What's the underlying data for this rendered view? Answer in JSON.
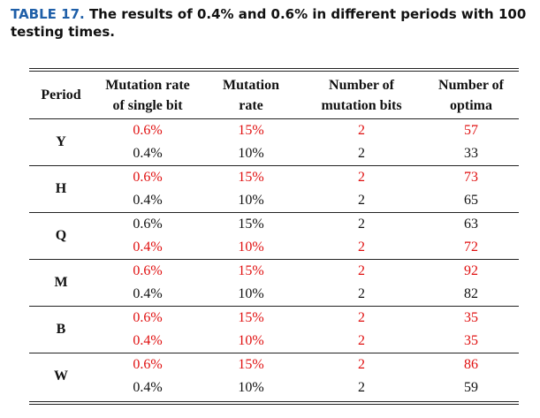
{
  "caption": {
    "label": "TABLE 17.",
    "text": "The results of 0.4% and 0.6% in different periods with 100 testing times."
  },
  "header": {
    "period": "Period",
    "col1_line1": "Mutation rate",
    "col1_line2": "of single bit",
    "col2_line1": "Mutation",
    "col2_line2": "rate",
    "col3_line1": "Number of",
    "col3_line2": "mutation bits",
    "col4_line1": "Number of",
    "col4_line2": "optima"
  },
  "colors": {
    "highlight": "#e01010",
    "caption_label": "#1f5fa8"
  },
  "groups": [
    {
      "period": "Y",
      "rows": [
        {
          "single": "0.6%",
          "rate": "15%",
          "bits": "2",
          "optima": "57",
          "red": [
            true,
            true,
            true,
            true
          ]
        },
        {
          "single": "0.4%",
          "rate": "10%",
          "bits": "2",
          "optima": "33",
          "red": [
            false,
            false,
            false,
            false
          ]
        }
      ]
    },
    {
      "period": "H",
      "rows": [
        {
          "single": "0.6%",
          "rate": "15%",
          "bits": "2",
          "optima": "73",
          "red": [
            true,
            true,
            true,
            true
          ]
        },
        {
          "single": "0.4%",
          "rate": "10%",
          "bits": "2",
          "optima": "65",
          "red": [
            false,
            false,
            false,
            false
          ]
        }
      ]
    },
    {
      "period": "Q",
      "rows": [
        {
          "single": "0.6%",
          "rate": "15%",
          "bits": "2",
          "optima": "63",
          "red": [
            false,
            false,
            false,
            false
          ]
        },
        {
          "single": "0.4%",
          "rate": "10%",
          "bits": "2",
          "optima": "72",
          "red": [
            true,
            true,
            true,
            true
          ]
        }
      ]
    },
    {
      "period": "M",
      "rows": [
        {
          "single": "0.6%",
          "rate": "15%",
          "bits": "2",
          "optima": "92",
          "red": [
            true,
            true,
            true,
            true
          ]
        },
        {
          "single": "0.4%",
          "rate": "10%",
          "bits": "2",
          "optima": "82",
          "red": [
            false,
            false,
            false,
            false
          ]
        }
      ]
    },
    {
      "period": "B",
      "rows": [
        {
          "single": "0.6%",
          "rate": "15%",
          "bits": "2",
          "optima": "35",
          "red": [
            true,
            true,
            true,
            true
          ]
        },
        {
          "single": "0.4%",
          "rate": "10%",
          "bits": "2",
          "optima": "35",
          "red": [
            true,
            true,
            true,
            true
          ]
        }
      ]
    },
    {
      "period": "W",
      "rows": [
        {
          "single": "0.6%",
          "rate": "15%",
          "bits": "2",
          "optima": "86",
          "red": [
            true,
            true,
            true,
            true
          ]
        },
        {
          "single": "0.4%",
          "rate": "10%",
          "bits": "2",
          "optima": "59",
          "red": [
            false,
            false,
            false,
            false
          ]
        }
      ]
    }
  ]
}
